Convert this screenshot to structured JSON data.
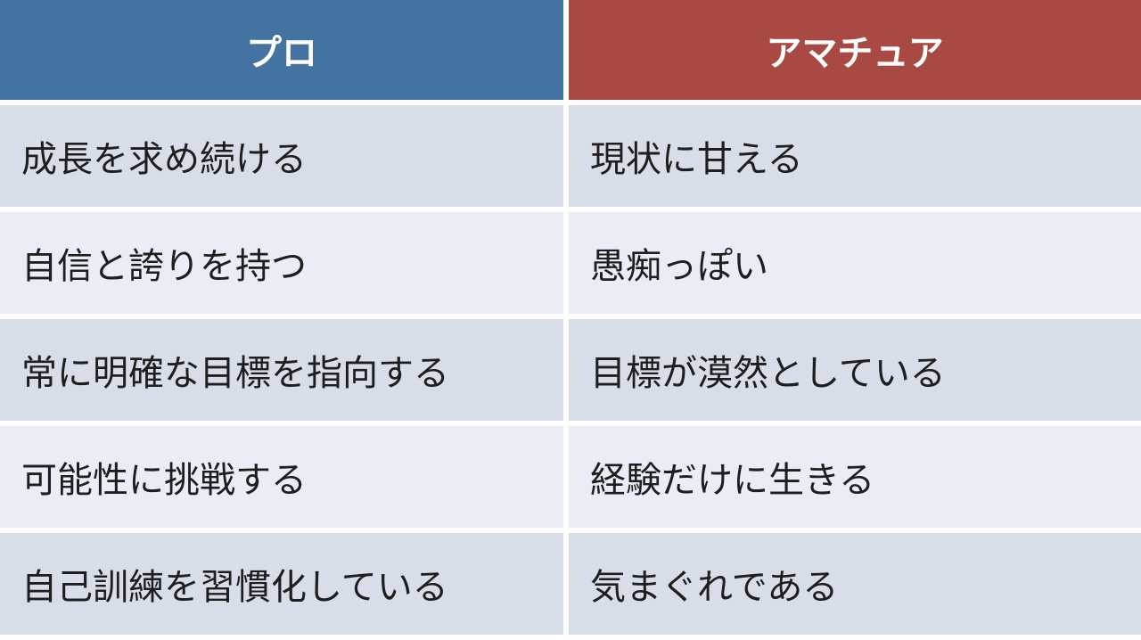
{
  "table": {
    "headers": [
      "プロ",
      "アマチュア"
    ],
    "header_colors": {
      "pro": "#4472a1",
      "amateur": "#a84944"
    },
    "rows": [
      [
        "成長を求め続ける",
        "現状に甘える"
      ],
      [
        "自信と誇りを持つ",
        "愚痴っぽい"
      ],
      [
        "常に明確な目標を指向する",
        "目標が漠然としている"
      ],
      [
        "可能性に挑戦する",
        "経験だけに生きる"
      ],
      [
        "自己訓練を習慣化している",
        "気まぐれである"
      ]
    ]
  }
}
